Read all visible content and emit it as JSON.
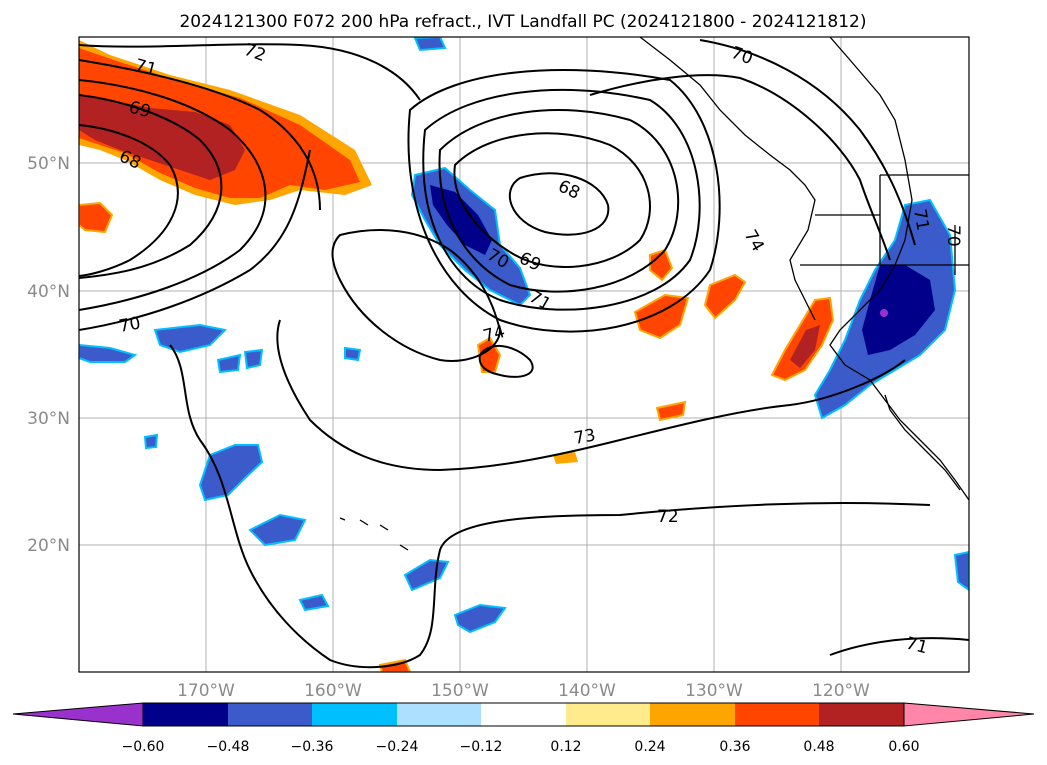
{
  "title": "2024121300 F072 200 hPa refract., IVT Landfall PC (2024121800 - 2024121812)",
  "lat_labels": [
    "50°N",
    "40°N",
    "30°N",
    "20°N"
  ],
  "lon_labels": [
    "170°W",
    "160°W",
    "150°W",
    "140°W",
    "130°W",
    "120°W"
  ],
  "contour_labels": [
    "72",
    "71",
    "69",
    "68",
    "70",
    "68",
    "69",
    "70",
    "71",
    "74",
    "73",
    "72",
    "70",
    "74",
    "71",
    "70",
    "71"
  ],
  "colorbar": {
    "colors": [
      "#9932CC",
      "#00008B",
      "#3A5BC9",
      "#00BFFF",
      "#ADDFFF",
      "#FFFFFF",
      "#FFEB8C",
      "#FFA500",
      "#FF4500",
      "#B22222",
      "#FF85A9"
    ],
    "labels": [
      "−0.60",
      "−0.48",
      "−0.36",
      "−0.24",
      "−0.12",
      "0.12",
      "0.24",
      "0.36",
      "0.48",
      "0.60"
    ]
  }
}
